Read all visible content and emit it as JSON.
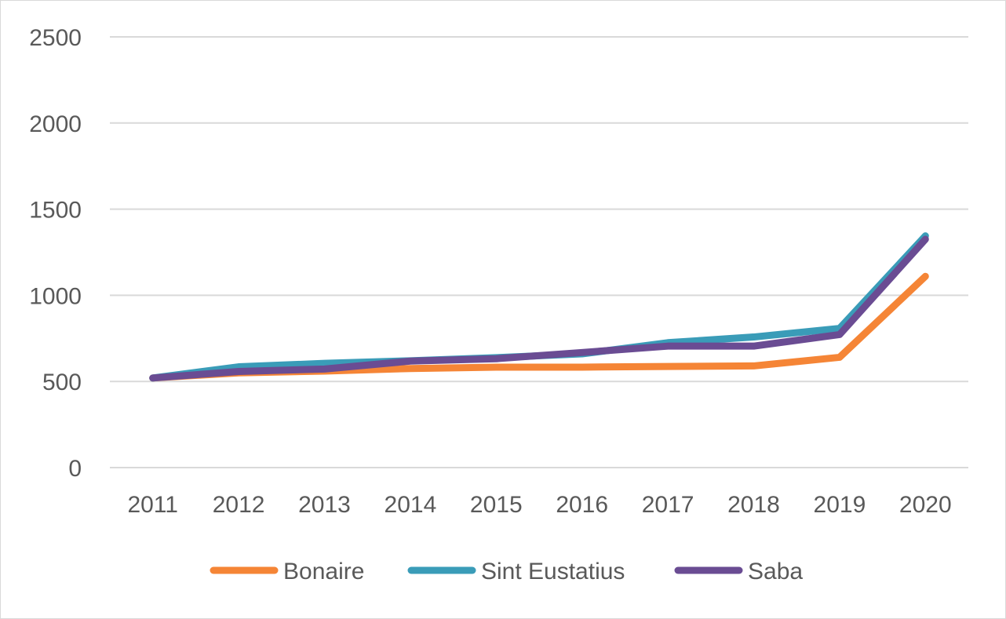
{
  "chart_data": {
    "type": "line",
    "title": "",
    "xlabel": "",
    "ylabel": "",
    "categories": [
      "2011",
      "2012",
      "2013",
      "2014",
      "2015",
      "2016",
      "2017",
      "2018",
      "2019",
      "2020"
    ],
    "ylim": [
      0,
      2500
    ],
    "yticks": [
      0,
      500,
      1000,
      1500,
      2000,
      2500
    ],
    "grid": true,
    "legend_position": "bottom",
    "series": [
      {
        "name": "Bonaire",
        "color": "#f58536",
        "values": [
          520,
          550,
          560,
          575,
          583,
          583,
          587,
          590,
          640,
          1110
        ]
      },
      {
        "name": "Sint Eustatius",
        "color": "#3a9cb8",
        "values": [
          520,
          585,
          605,
          620,
          638,
          660,
          725,
          758,
          808,
          1345
        ]
      },
      {
        "name": "Saba",
        "color": "#6a4c93",
        "values": [
          520,
          558,
          572,
          618,
          632,
          668,
          705,
          705,
          772,
          1325
        ]
      }
    ]
  }
}
